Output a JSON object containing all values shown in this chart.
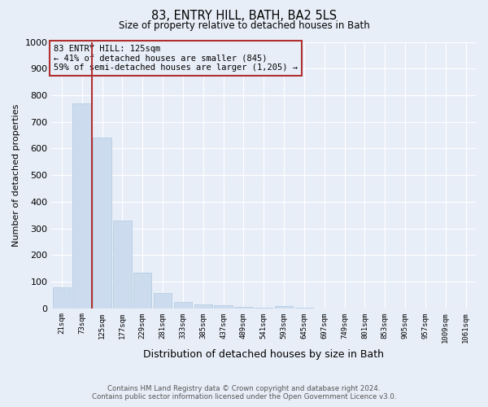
{
  "title": "83, ENTRY HILL, BATH, BA2 5LS",
  "subtitle": "Size of property relative to detached houses in Bath",
  "xlabel": "Distribution of detached houses by size in Bath",
  "ylabel": "Number of detached properties",
  "footnote1": "Contains HM Land Registry data © Crown copyright and database right 2024.",
  "footnote2": "Contains public sector information licensed under the Open Government Licence v3.0.",
  "annotation_line1": "83 ENTRY HILL: 125sqm",
  "annotation_line2": "← 41% of detached houses are smaller (845)",
  "annotation_line3": "59% of semi-detached houses are larger (1,205) →",
  "bar_color": "#ccdcee",
  "bar_edge_color": "#afc8e0",
  "marker_color": "#b03030",
  "annotation_box_color": "#b03030",
  "background_color": "#e8eef8",
  "grid_color": "#ffffff",
  "categories": [
    "21sqm",
    "73sqm",
    "125sqm",
    "177sqm",
    "229sqm",
    "281sqm",
    "333sqm",
    "385sqm",
    "437sqm",
    "489sqm",
    "541sqm",
    "593sqm",
    "645sqm",
    "697sqm",
    "749sqm",
    "801sqm",
    "853sqm",
    "905sqm",
    "957sqm",
    "1009sqm",
    "1061sqm"
  ],
  "values": [
    80,
    770,
    640,
    330,
    135,
    57,
    25,
    15,
    10,
    5,
    3,
    8,
    2,
    0,
    0,
    0,
    0,
    0,
    0,
    0,
    0
  ],
  "marker_bin_index": 2,
  "ylim": [
    0,
    1000
  ],
  "yticks": [
    0,
    100,
    200,
    300,
    400,
    500,
    600,
    700,
    800,
    900,
    1000
  ]
}
